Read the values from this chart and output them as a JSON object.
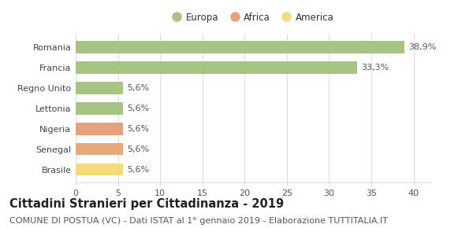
{
  "categories": [
    "Brasile",
    "Senegal",
    "Nigeria",
    "Lettonia",
    "Regno Unito",
    "Francia",
    "Romania"
  ],
  "values": [
    5.6,
    5.6,
    5.6,
    5.6,
    5.6,
    33.3,
    38.9
  ],
  "colors": [
    "#f5d97a",
    "#e8a87a",
    "#e8a07a",
    "#a8c484",
    "#a8c484",
    "#a8c484",
    "#a8c484"
  ],
  "labels": [
    "5,6%",
    "5,6%",
    "5,6%",
    "5,6%",
    "5,6%",
    "33,3%",
    "38,9%"
  ],
  "legend_items": [
    {
      "label": "Europa",
      "color": "#a8c484"
    },
    {
      "label": "Africa",
      "color": "#e8a07a"
    },
    {
      "label": "America",
      "color": "#f5d97a"
    }
  ],
  "xlim": [
    0,
    42
  ],
  "xticks": [
    0,
    5,
    10,
    15,
    20,
    25,
    30,
    35,
    40
  ],
  "title": "Cittadini Stranieri per Cittadinanza - 2019",
  "subtitle": "COMUNE DI POSTUA (VC) - Dati ISTAT al 1° gennaio 2019 - Elaborazione TUTTITALIA.IT",
  "title_fontsize": 10.5,
  "subtitle_fontsize": 8,
  "background_color": "#ffffff",
  "grid_color": "#dddddd",
  "bar_height": 0.6,
  "label_fontsize": 8,
  "tick_fontsize": 8,
  "legend_fontsize": 8.5,
  "label_color": "#555555",
  "ytick_color": "#444444"
}
